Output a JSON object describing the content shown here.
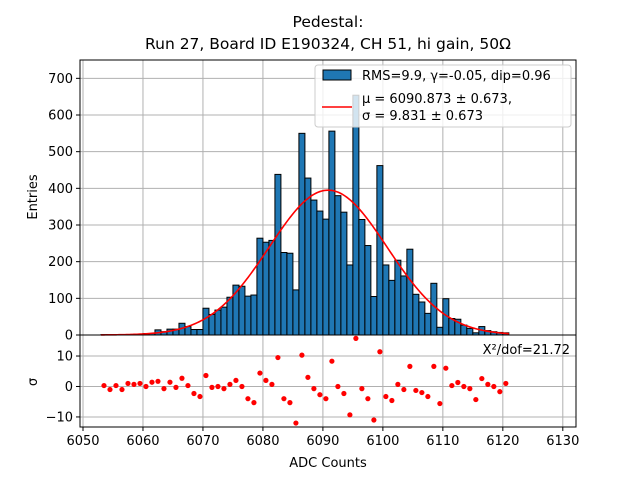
{
  "chart_data": [
    {
      "type": "bar",
      "title_line1": "Pedestal:",
      "title_line2": "Run 27, Board ID E190324, CH 51, hi gain, 50Ω",
      "xlabel": "ADC Counts",
      "ylabel": "Entries",
      "xlim": [
        6049.5,
        6132.2
      ],
      "ylim": [
        0,
        750
      ],
      "grid": true,
      "x_ticks": [
        "6050",
        "6060",
        "6070",
        "6080",
        "6090",
        "6100",
        "6110",
        "6120",
        "6130"
      ],
      "y_ticks": [
        "0",
        "100",
        "200",
        "300",
        "400",
        "500",
        "600",
        "700"
      ],
      "bin_width": 1,
      "bin_start": 6053,
      "values": [
        1,
        1,
        1,
        1,
        1,
        1,
        1,
        4,
        4,
        14,
        9,
        16,
        16,
        32,
        23,
        15,
        15,
        73,
        56,
        68,
        76,
        103,
        136,
        133,
        106,
        109,
        264,
        253,
        258,
        438,
        225,
        223,
        123,
        550,
        428,
        368,
        338,
        316,
        556,
        380,
        335,
        191,
        654,
        315,
        244,
        105,
        462,
        191,
        149,
        204,
        161,
        234,
        111,
        90,
        59,
        141,
        21,
        99,
        45,
        43,
        27,
        18,
        6,
        23,
        12,
        9,
        7,
        6
      ],
      "bar_color": "#1f77b4",
      "fit": {
        "type": "gaussian",
        "mu": 6090.873,
        "sigma": 9.831,
        "amplitude": 395,
        "color": "#ff0000"
      },
      "legend": {
        "position": "top-right",
        "entries": [
          {
            "label": "RMS=9.9, γ=-0.05, dip=0.96",
            "kind": "patch",
            "color": "#1f77b4"
          },
          {
            "label_line1": "μ = 6090.873 ± 0.673,",
            "label_line2": "σ = 9.831 ± 0.673",
            "kind": "line",
            "color": "#ff0000"
          }
        ]
      }
    },
    {
      "type": "scatter",
      "xlabel": "ADC Counts",
      "ylabel": "σ",
      "xlim": [
        6049.5,
        6132.2
      ],
      "ylim": [
        -13.3,
        16.9
      ],
      "grid": true,
      "x_ticks": [
        "6050",
        "6060",
        "6070",
        "6080",
        "6090",
        "6100",
        "6110",
        "6120",
        "6130"
      ],
      "y_ticks": [
        "−10",
        "0",
        "10"
      ],
      "y_tick_values": [
        -10,
        0,
        10
      ],
      "x_start": 6053.5,
      "values": [
        0.3,
        -1,
        0.3,
        -1,
        1,
        0.7,
        1,
        0,
        1.4,
        1.7,
        -0.7,
        1.4,
        -0.3,
        2.7,
        0.3,
        -2.3,
        -3.3,
        3.6,
        -0.3,
        0,
        -0.7,
        0.7,
        2,
        0,
        -4,
        -5.3,
        4.4,
        2,
        0.7,
        9.5,
        -4,
        -5.3,
        -12,
        10.3,
        3,
        -0.7,
        -2.7,
        -4,
        8.3,
        0,
        -2.3,
        -9.3,
        15.8,
        -0.7,
        -4,
        -11,
        11.4,
        -3.3,
        -4.6,
        0.7,
        -1,
        6.6,
        -1.3,
        -2,
        -3.3,
        6.6,
        -5.6,
        6,
        0.3,
        1.3,
        0,
        -0.7,
        -4.3,
        2.6,
        0.7,
        0,
        -1.7,
        1
      ],
      "point_color": "#ff0000",
      "annotation": "X²/dof=21.72"
    }
  ]
}
